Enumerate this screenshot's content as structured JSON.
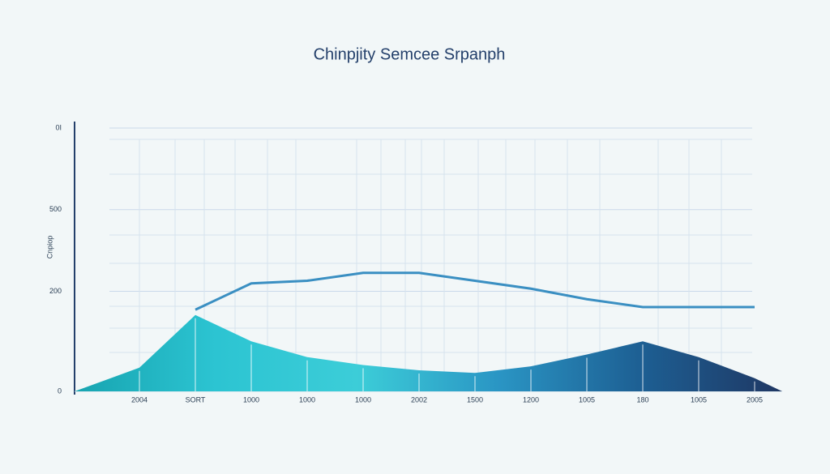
{
  "chart_data": {
    "type": "area",
    "title": "Chinpjity Semcee Srpanph",
    "ylabel": "Cnpiop",
    "categories": [
      "2004",
      "SORT",
      "1000",
      "1000",
      "1000",
      "2002",
      "1500",
      "1200",
      "1005",
      "180",
      "1005",
      "2005"
    ],
    "series": [
      {
        "type": "area",
        "colors": [
          "#17a4b0",
          "#2cc4d2",
          "#3ccdd8",
          "#2a95c4",
          "#1d5f93",
          "#1f3763"
        ],
        "values": [
          9,
          29,
          19,
          13,
          10,
          8,
          7,
          9.5,
          14,
          19,
          13,
          5
        ]
      },
      {
        "type": "line",
        "color": "#3a8fc2",
        "values": [
          null,
          31,
          41,
          42,
          45,
          45,
          42,
          39,
          35,
          32,
          32,
          32
        ]
      }
    ],
    "ylim": [
      0,
      100
    ],
    "yticks": [
      0,
      {
        "value": 38,
        "label": "200"
      },
      {
        "value": 69,
        "label": "500"
      },
      {
        "value": 100,
        "label": "0I"
      }
    ],
    "grid": true
  }
}
